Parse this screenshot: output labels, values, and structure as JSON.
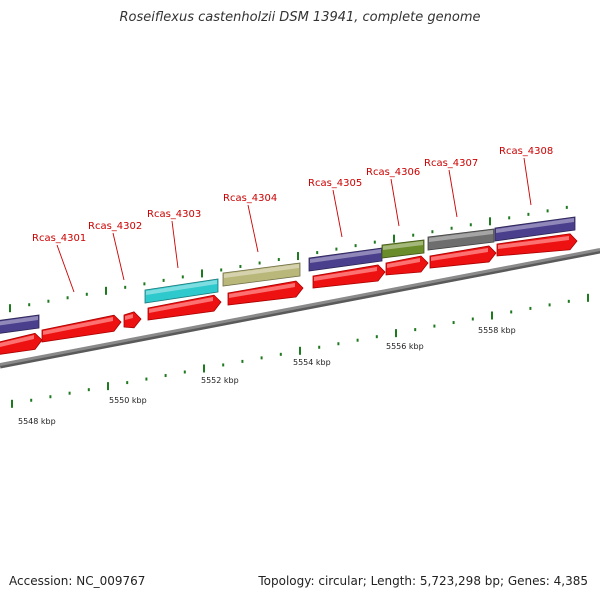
{
  "title": "Roseiflexus castenholzii DSM 13941, complete genome",
  "accession": "Accession: NC_009767",
  "summary": "Topology: circular; Length: 5,723,298 bp; Genes: 4,385",
  "colors": {
    "backbone": "#8a8a8a",
    "cds": "#ee1111",
    "tick": "#1e7a1e",
    "label": "#cc0000",
    "leader": "#cc0000"
  },
  "scale_labels": [
    "5548 kbp",
    "5550 kbp",
    "5552 kbp",
    "5554 kbp",
    "5556 kbp",
    "5558 kbp"
  ],
  "gene_labels": [
    "Rcas_4301",
    "Rcas_4302",
    "Rcas_4303",
    "Rcas_4304",
    "Rcas_4305",
    "Rcas_4306",
    "Rcas_4307",
    "Rcas_4308"
  ],
  "feature_colors": [
    "#4a3f8c",
    "#2ec9cc",
    "#b9b77a",
    "#4a3f8c",
    "#6b8c2a",
    "#6e6e6e",
    "#4a3f8c"
  ]
}
